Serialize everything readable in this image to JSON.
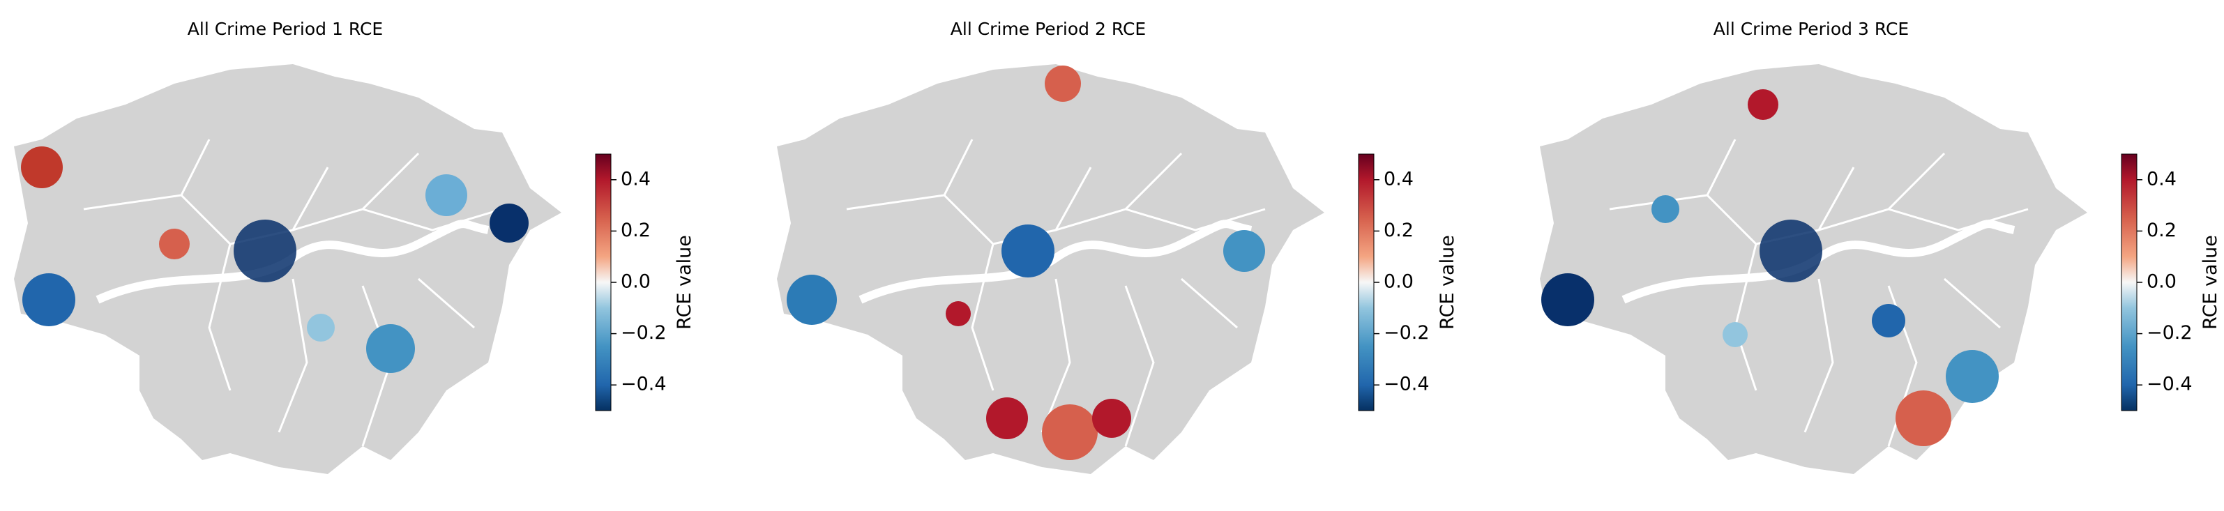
{
  "chart_data": [
    {
      "type": "map",
      "title": "All Crime Period 1 RCE",
      "colorbar_label": "RCE value",
      "clim": [
        -0.5,
        0.5
      ],
      "cticks": [
        {
          "value": -0.4,
          "label": "−0.4"
        },
        {
          "value": -0.2,
          "label": "−0.2"
        },
        {
          "value": 0,
          "label": "0.0"
        },
        0.2,
        0.4
      ]
    },
    {
      "type": "map",
      "title": "All Crime Period 2 RCE",
      "colorbar_label": "RCE value",
      "clim": [
        -0.5,
        0.5
      ],
      "cticks": [
        {
          "value": -0.4,
          "label": "−0.4"
        },
        {
          "value": -0.2,
          "label": "−0.2"
        },
        {
          "value": 0,
          "label": "0.0"
        },
        0.2,
        0.4
      ]
    },
    {
      "type": "map",
      "title": "All Crime Period 3 RCE",
      "colorbar_label": "RCE value",
      "clim": [
        -0.5,
        0.5
      ],
      "cticks": [
        {
          "value": -0.4,
          "label": "−0.4"
        },
        {
          "value": -0.2,
          "label": "−0.2"
        },
        {
          "value": 0,
          "label": "0.0"
        },
        0.2,
        0.4
      ]
    }
  ]
}
